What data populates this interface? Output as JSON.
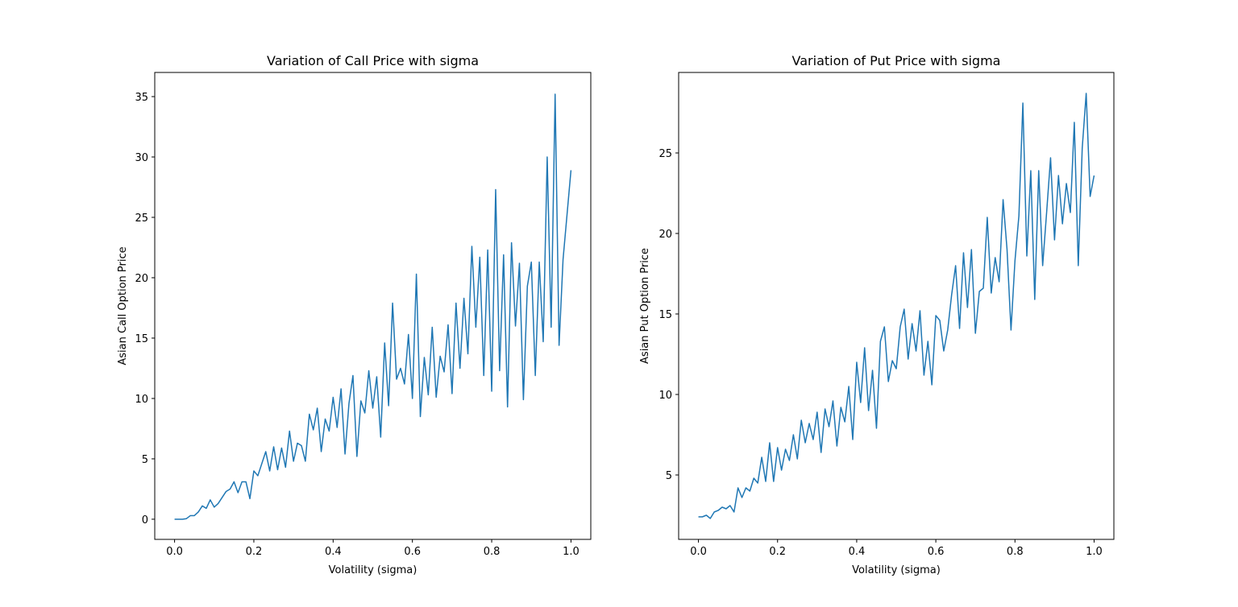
{
  "chart_data": [
    {
      "type": "line",
      "title": "Variation of Call Price with sigma",
      "xlabel": "Volatility (sigma)",
      "ylabel": "Asian Call Option Price",
      "color": "#1f77b4",
      "x": [
        0,
        0.01,
        0.02,
        0.03,
        0.04,
        0.05,
        0.06,
        0.07,
        0.08,
        0.09,
        0.1,
        0.11,
        0.12,
        0.13,
        0.14,
        0.15,
        0.16,
        0.17,
        0.18,
        0.19,
        0.2,
        0.21,
        0.22,
        0.23,
        0.24,
        0.25,
        0.26,
        0.27,
        0.28,
        0.29,
        0.3,
        0.31,
        0.32,
        0.33,
        0.34,
        0.35,
        0.36,
        0.37,
        0.38,
        0.39,
        0.4,
        0.41,
        0.42,
        0.43,
        0.44,
        0.45,
        0.46,
        0.47,
        0.48,
        0.49,
        0.5,
        0.51,
        0.52,
        0.53,
        0.54,
        0.55,
        0.56,
        0.57,
        0.58,
        0.59,
        0.6,
        0.61,
        0.62,
        0.63,
        0.64,
        0.65,
        0.66,
        0.67,
        0.68,
        0.69,
        0.7,
        0.71,
        0.72,
        0.73,
        0.74,
        0.75,
        0.76,
        0.77,
        0.78,
        0.79,
        0.8,
        0.81,
        0.82,
        0.83,
        0.84,
        0.85,
        0.86,
        0.87,
        0.88,
        0.89,
        0.9,
        0.91,
        0.92,
        0.93,
        0.94,
        0.95,
        0.96,
        0.97,
        0.98,
        0.99,
        1
      ],
      "values": [
        0,
        0,
        0,
        0.05,
        0.3,
        0.3,
        0.6,
        1.1,
        0.9,
        1.6,
        1.0,
        1.3,
        1.8,
        2.3,
        2.5,
        3.1,
        2.2,
        3.1,
        3.1,
        1.7,
        4.0,
        3.6,
        4.6,
        5.6,
        4.0,
        6.0,
        4.1,
        5.9,
        4.3,
        7.3,
        4.8,
        6.3,
        6.1,
        4.8,
        8.7,
        7.4,
        9.2,
        5.6,
        8.3,
        7.3,
        10.1,
        7.6,
        10.8,
        5.4,
        9.6,
        11.9,
        5.2,
        9.8,
        8.8,
        12.3,
        9.2,
        11.8,
        6.8,
        14.6,
        9.4,
        17.9,
        11.6,
        12.5,
        11.2,
        15.3,
        10.0,
        20.3,
        8.5,
        13.4,
        10.3,
        15.9,
        10.1,
        13.5,
        12.2,
        16.1,
        10.4,
        17.9,
        12.5,
        18.3,
        13.7,
        22.6,
        15.9,
        21.7,
        11.9,
        22.3,
        10.6,
        27.3,
        12.3,
        21.9,
        9.3,
        22.9,
        16.0,
        21.2,
        9.9,
        19.3,
        21.3,
        11.9,
        21.3,
        14.7,
        30.0,
        15.9,
        35.2,
        14.4,
        21.5,
        25.2,
        28.9
      ],
      "xlim": [
        -0.05,
        1.05
      ],
      "ylim": [
        -1.67,
        37.0
      ],
      "xticks": [
        {
          "value": 0,
          "label": "0.0"
        },
        {
          "value": 0.2,
          "label": "0.2"
        },
        {
          "value": 0.4,
          "label": "0.4"
        },
        {
          "value": 0.6,
          "label": "0.6"
        },
        {
          "value": 0.8,
          "label": "0.8"
        },
        {
          "value": 1,
          "label": "1.0"
        }
      ],
      "yticks": [
        0,
        5,
        10,
        15,
        20,
        25,
        30,
        35
      ]
    },
    {
      "type": "line",
      "title": "Variation of Put Price with sigma",
      "xlabel": "Volatility (sigma)",
      "ylabel": "Asian Put Option Price",
      "color": "#1f77b4",
      "x": [
        0,
        0.01,
        0.02,
        0.03,
        0.04,
        0.05,
        0.06,
        0.07,
        0.08,
        0.09,
        0.1,
        0.11,
        0.12,
        0.13,
        0.14,
        0.15,
        0.16,
        0.17,
        0.18,
        0.19,
        0.2,
        0.21,
        0.22,
        0.23,
        0.24,
        0.25,
        0.26,
        0.27,
        0.28,
        0.29,
        0.3,
        0.31,
        0.32,
        0.33,
        0.34,
        0.35,
        0.36,
        0.37,
        0.38,
        0.39,
        0.4,
        0.41,
        0.42,
        0.43,
        0.44,
        0.45,
        0.46,
        0.47,
        0.48,
        0.49,
        0.5,
        0.51,
        0.52,
        0.53,
        0.54,
        0.55,
        0.56,
        0.57,
        0.58,
        0.59,
        0.6,
        0.61,
        0.62,
        0.63,
        0.64,
        0.65,
        0.66,
        0.67,
        0.68,
        0.69,
        0.7,
        0.71,
        0.72,
        0.73,
        0.74,
        0.75,
        0.76,
        0.77,
        0.78,
        0.79,
        0.8,
        0.81,
        0.82,
        0.83,
        0.84,
        0.85,
        0.86,
        0.87,
        0.88,
        0.89,
        0.9,
        0.91,
        0.92,
        0.93,
        0.94,
        0.95,
        0.96,
        0.97,
        0.98,
        0.99,
        1
      ],
      "values": [
        2.4,
        2.4,
        2.5,
        2.3,
        2.7,
        2.8,
        3.0,
        2.9,
        3.1,
        2.7,
        4.2,
        3.6,
        4.2,
        4.0,
        4.8,
        4.5,
        6.1,
        4.6,
        7.0,
        4.6,
        6.7,
        5.3,
        6.6,
        5.9,
        7.5,
        6.0,
        8.4,
        7.0,
        8.2,
        7.2,
        8.9,
        6.4,
        9.1,
        8.0,
        9.6,
        6.8,
        9.2,
        8.3,
        10.5,
        7.2,
        12.0,
        9.5,
        12.9,
        9.0,
        11.5,
        7.9,
        13.3,
        14.2,
        10.8,
        12.1,
        11.6,
        14.2,
        15.3,
        12.2,
        14.4,
        12.7,
        15.2,
        11.2,
        13.3,
        10.6,
        14.9,
        14.6,
        12.7,
        14.0,
        16.2,
        18.0,
        14.1,
        18.8,
        15.4,
        19.0,
        13.8,
        16.4,
        16.6,
        21.0,
        16.3,
        18.5,
        17.0,
        22.1,
        19.0,
        14.0,
        18.3,
        21.1,
        28.1,
        18.6,
        23.9,
        15.9,
        23.9,
        18.0,
        21.3,
        24.7,
        19.6,
        23.6,
        20.6,
        23.1,
        21.3,
        26.9,
        18.0,
        25.3,
        28.7,
        22.3,
        23.6
      ],
      "xlim": [
        -0.05,
        1.05
      ],
      "ylim": [
        1.0,
        30.0
      ],
      "xticks": [
        {
          "value": 0,
          "label": "0.0"
        },
        {
          "value": 0.2,
          "label": "0.2"
        },
        {
          "value": 0.4,
          "label": "0.4"
        },
        {
          "value": 0.6,
          "label": "0.6"
        },
        {
          "value": 0.8,
          "label": "0.8"
        },
        {
          "value": 1,
          "label": "1.0"
        }
      ],
      "yticks": [
        5,
        10,
        15,
        20,
        25
      ]
    }
  ]
}
